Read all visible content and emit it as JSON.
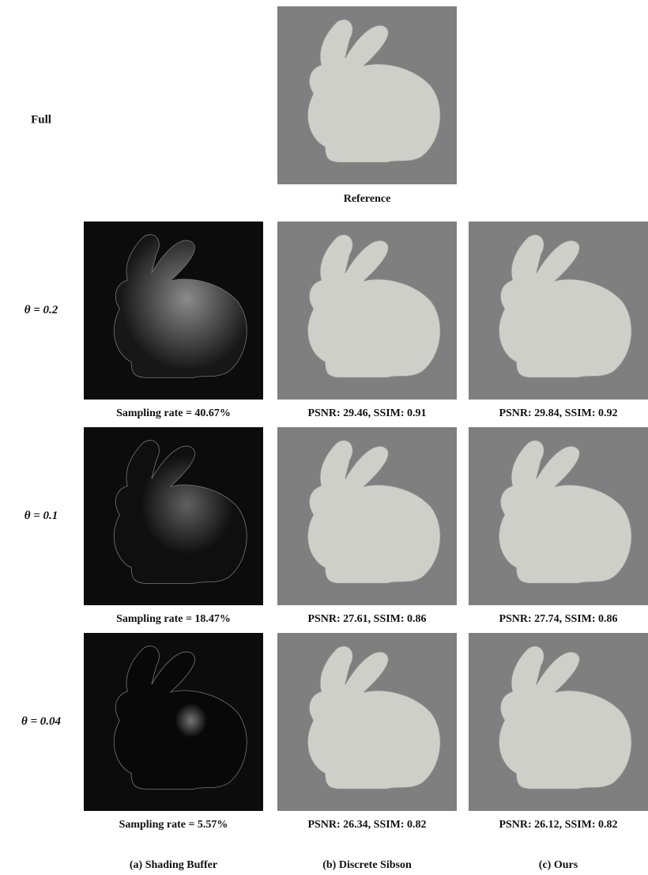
{
  "header_row": {
    "label": "Full",
    "caption": "Reference"
  },
  "rows": [
    {
      "label": "θ = 0.2",
      "captions": [
        "Sampling rate = 40.67%",
        "PSNR: 29.46, SSIM: 0.91",
        "PSNR: 29.84, SSIM: 0.92"
      ]
    },
    {
      "label": "θ = 0.1",
      "captions": [
        "Sampling rate = 18.47%",
        "PSNR: 27.61, SSIM: 0.86",
        "PSNR: 27.74, SSIM: 0.86"
      ]
    },
    {
      "label": "θ = 0.04",
      "captions": [
        "Sampling rate = 5.57%",
        "PSNR: 26.34, SSIM: 0.82",
        "PSNR: 26.12, SSIM: 0.82"
      ]
    }
  ],
  "column_labels": [
    "(a) Shading Buffer",
    "(b) Discrete Sibson",
    "(c) Ours"
  ]
}
